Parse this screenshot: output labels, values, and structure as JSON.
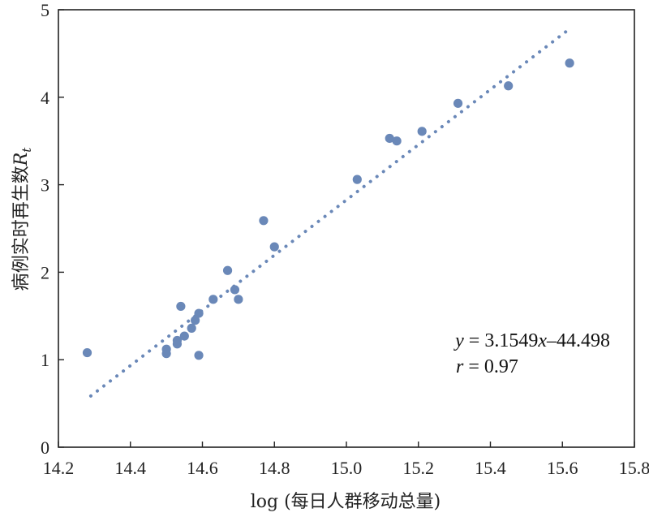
{
  "chart_data": {
    "type": "scatter",
    "xlabel": "log (每日人群移动总量)",
    "ylabel_main": "病例实时再生数",
    "ylabel_var": "R",
    "ylabel_sub": "t",
    "xlim": [
      14.2,
      15.8
    ],
    "ylim": [
      0,
      5
    ],
    "xticks": [
      "14.2",
      "14.4",
      "14.6",
      "14.8",
      "15.0",
      "15.2",
      "15.4",
      "15.6",
      "15.8"
    ],
    "yticks": [
      "0",
      "1",
      "2",
      "3",
      "4",
      "5"
    ],
    "grid": false,
    "points": [
      {
        "x": 14.28,
        "y": 1.08
      },
      {
        "x": 14.5,
        "y": 1.12
      },
      {
        "x": 14.5,
        "y": 1.07
      },
      {
        "x": 14.53,
        "y": 1.22
      },
      {
        "x": 14.53,
        "y": 1.18
      },
      {
        "x": 14.54,
        "y": 1.61
      },
      {
        "x": 14.55,
        "y": 1.27
      },
      {
        "x": 14.57,
        "y": 1.36
      },
      {
        "x": 14.58,
        "y": 1.45
      },
      {
        "x": 14.59,
        "y": 1.53
      },
      {
        "x": 14.59,
        "y": 1.05
      },
      {
        "x": 14.63,
        "y": 1.69
      },
      {
        "x": 14.67,
        "y": 2.02
      },
      {
        "x": 14.69,
        "y": 1.8
      },
      {
        "x": 14.7,
        "y": 1.69
      },
      {
        "x": 14.77,
        "y": 2.59
      },
      {
        "x": 14.8,
        "y": 2.29
      },
      {
        "x": 15.03,
        "y": 3.06
      },
      {
        "x": 15.12,
        "y": 3.53
      },
      {
        "x": 15.14,
        "y": 3.5
      },
      {
        "x": 15.21,
        "y": 3.61
      },
      {
        "x": 15.31,
        "y": 3.93
      },
      {
        "x": 15.45,
        "y": 4.13
      },
      {
        "x": 15.62,
        "y": 4.39
      }
    ],
    "fit_line": {
      "x": [
        14.29,
        15.62
      ],
      "slope": 3.1549,
      "intercept": -44.498,
      "style": "dotted"
    },
    "annotation_eq": {
      "lhs": "y",
      "rhs_num": " = 3.1549",
      "var": "x",
      "rest": "–44.498"
    },
    "annotation_r": {
      "lhs": "r",
      "rest": " = 0.97"
    },
    "color": "#6a88b8"
  }
}
